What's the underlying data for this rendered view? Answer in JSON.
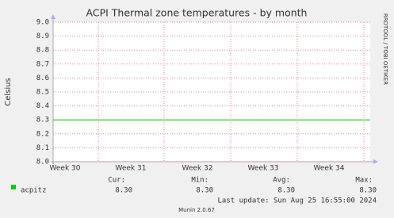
{
  "chart_data": {
    "type": "line",
    "title": "ACPI Thermal zone temperatures - by month",
    "y_label": "Celsius",
    "categories": [
      "Week 30",
      "Week 31",
      "Week 32",
      "Week 33",
      "Week 34"
    ],
    "series": [
      {
        "name": "acpitz",
        "color": "#00cc00",
        "values": [
          8.3,
          8.3,
          8.3,
          8.3,
          8.3
        ]
      }
    ],
    "ylim": [
      8,
      9
    ],
    "yticks": [
      {
        "value": 8,
        "label": "8.0"
      },
      8.1,
      8.2,
      8.3,
      8.4,
      8.5,
      8.6,
      8.7,
      8.8,
      8.9,
      {
        "value": 9,
        "label": "9.0"
      }
    ],
    "grid": true,
    "legend_table": {
      "headers": [
        "Cur:",
        "Min:",
        "Avg:",
        "Max:"
      ],
      "values": [
        8.3,
        8.3,
        8.3,
        8.3
      ],
      "value_labels": [
        "8.30",
        "8.30",
        "8.30",
        "8.30"
      ]
    },
    "last_update": "Last update: Sun Aug 25 16:55:00 2024",
    "footer": "Munin 2.0.67",
    "watermark": "RRDTOOL / TOBI OETIKER"
  }
}
